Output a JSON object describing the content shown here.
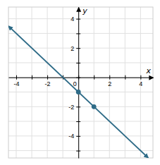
{
  "chart_data": {
    "type": "line",
    "xlabel": "x",
    "ylabel": "y",
    "xlim": [
      -4.5,
      4.8
    ],
    "ylim": [
      -5.5,
      4.8
    ],
    "xticks": [
      -4,
      {
        "value": -3,
        "label": null
      },
      -2,
      {
        "value": -1,
        "label": null
      },
      0,
      {
        "value": 1,
        "label": null
      },
      2,
      {
        "value": 3,
        "label": null
      },
      4
    ],
    "yticks": [
      {
        "value": -5,
        "label": null
      },
      -4,
      {
        "value": -3,
        "label": null
      },
      -2,
      {
        "value": -1,
        "label": null
      },
      {
        "value": 0,
        "label": null
      },
      {
        "value": 1,
        "label": null
      },
      2,
      {
        "value": 3,
        "label": null
      },
      4
    ],
    "grid": true,
    "series": [
      {
        "type": "line",
        "color": "#2e6b87",
        "x": [
          -4.5,
          4.5
        ],
        "values": [
          3.5,
          -5.5
        ]
      },
      {
        "type": "scatter",
        "marker": "circle",
        "color": "#2e6b87",
        "x": [
          0,
          1
        ],
        "values": [
          -1,
          -2
        ]
      }
    ]
  }
}
